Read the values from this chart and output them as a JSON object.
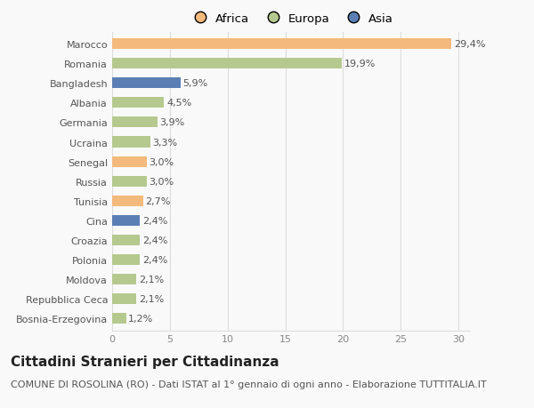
{
  "countries": [
    "Marocco",
    "Romania",
    "Bangladesh",
    "Albania",
    "Germania",
    "Ucraina",
    "Senegal",
    "Russia",
    "Tunisia",
    "Cina",
    "Croazia",
    "Polonia",
    "Moldova",
    "Repubblica Ceca",
    "Bosnia-Erzegovina"
  ],
  "values": [
    29.4,
    19.9,
    5.9,
    4.5,
    3.9,
    3.3,
    3.0,
    3.0,
    2.7,
    2.4,
    2.4,
    2.4,
    2.1,
    2.1,
    1.2
  ],
  "labels": [
    "29,4%",
    "19,9%",
    "5,9%",
    "4,5%",
    "3,9%",
    "3,3%",
    "3,0%",
    "3,0%",
    "2,7%",
    "2,4%",
    "2,4%",
    "2,4%",
    "2,1%",
    "2,1%",
    "1,2%"
  ],
  "colors": [
    "#f4b97c",
    "#b5c98e",
    "#5b7fb5",
    "#b5c98e",
    "#b5c98e",
    "#b5c98e",
    "#f4b97c",
    "#b5c98e",
    "#f4b97c",
    "#5b7fb5",
    "#b5c98e",
    "#b5c98e",
    "#b5c98e",
    "#b5c98e",
    "#b5c98e"
  ],
  "legend_labels": [
    "Africa",
    "Europa",
    "Asia"
  ],
  "legend_colors": [
    "#f4b97c",
    "#b5c98e",
    "#5b7fb5"
  ],
  "title": "Cittadini Stranieri per Cittadinanza",
  "subtitle": "COMUNE DI ROSOLINA (RO) - Dati ISTAT al 1° gennaio di ogni anno - Elaborazione TUTTITALIA.IT",
  "xlim": [
    0,
    31
  ],
  "xticks": [
    0,
    5,
    10,
    15,
    20,
    25,
    30
  ],
  "background_color": "#f9f9f9",
  "grid_color": "#dddddd",
  "title_fontsize": 11,
  "subtitle_fontsize": 8,
  "label_fontsize": 8,
  "tick_fontsize": 8,
  "bar_height": 0.55
}
